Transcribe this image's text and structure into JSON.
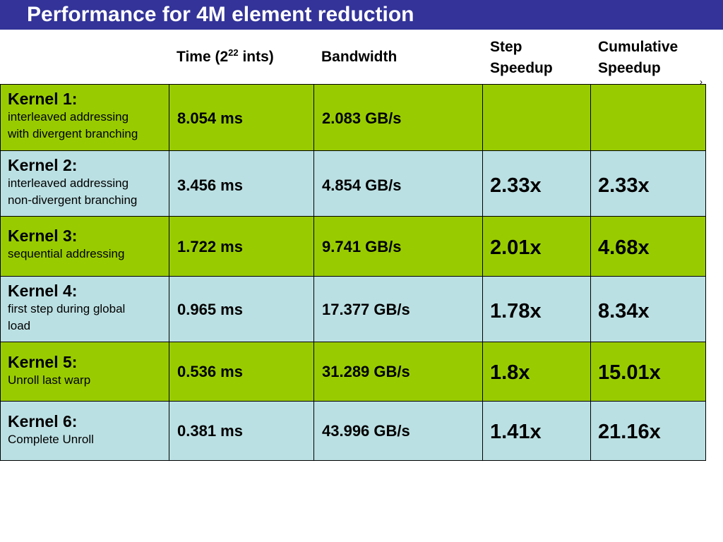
{
  "title": "Performance for 4M element reduction",
  "headers": {
    "time_prefix": "Time (2",
    "time_exp": "22",
    "time_suffix": " ints)",
    "bandwidth": "Bandwidth",
    "step_line1": "Step",
    "step_line2": "Speedup",
    "cumulative_line1": "Cumulative",
    "cumulative_line2": "Speedup"
  },
  "colors": {
    "title_bar": "#333399",
    "row_green": "#99cc00",
    "row_blue": "#bbe0e3"
  },
  "rows": [
    {
      "kernel": "Kernel 1:",
      "desc_line1": "interleaved addressing",
      "desc_line2": "with divergent branching",
      "time": "8.054 ms",
      "bandwidth": "2.083 GB/s",
      "step": "",
      "cumulative": ""
    },
    {
      "kernel": "Kernel 2:",
      "desc_line1": "interleaved addressing",
      "desc_line2": "non-divergent branching",
      "time": "3.456 ms",
      "bandwidth": "4.854 GB/s",
      "step": "2.33x",
      "cumulative": "2.33x"
    },
    {
      "kernel": "Kernel 3:",
      "desc_line1": "sequential addressing",
      "desc_line2": "",
      "time": "1.722 ms",
      "bandwidth": "9.741 GB/s",
      "step": "2.01x",
      "cumulative": "4.68x"
    },
    {
      "kernel": "Kernel 4:",
      "desc_line1": "first step during global",
      "desc_line2": "load",
      "time": "0.965 ms",
      "bandwidth": "17.377 GB/s",
      "step": "1.78x",
      "cumulative": "8.34x"
    },
    {
      "kernel": "Kernel 5:",
      "desc_line1": "Unroll last warp",
      "desc_line2": "",
      "time": "0.536 ms",
      "bandwidth": "31.289 GB/s",
      "step": "1.8x",
      "cumulative": "15.01x"
    },
    {
      "kernel": "Kernel 6:",
      "desc_line1": "Complete Unroll",
      "desc_line2": "",
      "time": "0.381 ms",
      "bandwidth": "43.996 GB/s",
      "step": "1.41x",
      "cumulative": "21.16x"
    }
  ],
  "corner_mark": "›"
}
